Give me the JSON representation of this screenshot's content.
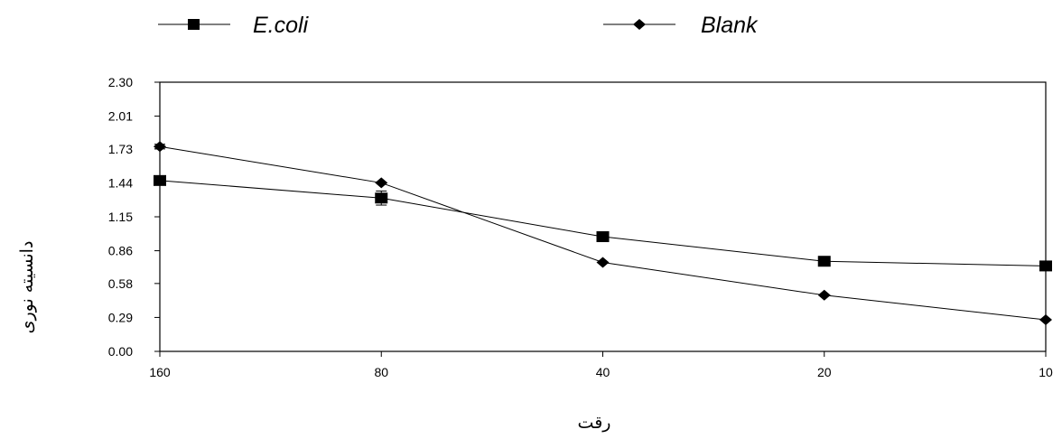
{
  "chart_data": {
    "type": "line",
    "title": "",
    "xlabel": "رقت",
    "ylabel": "دانسیته نوری",
    "categories": [
      "160",
      "80",
      "40",
      "20",
      "10"
    ],
    "yticks": [
      "0.00",
      "0.29",
      "0.58",
      "0.86",
      "1.15",
      "1.44",
      "1.73",
      "2.01",
      "2.30"
    ],
    "ylim": [
      0,
      2.3
    ],
    "grid": false,
    "legend": "top",
    "series": [
      {
        "name": "E.coli",
        "marker": "square",
        "color": "#000000",
        "values": [
          1.46,
          1.31,
          0.98,
          0.77,
          0.73
        ],
        "errors": [
          0.0,
          0.06,
          0.0,
          0.0,
          0.0
        ]
      },
      {
        "name": "Blank",
        "marker": "diamond",
        "color": "#000000",
        "values": [
          1.75,
          1.44,
          0.76,
          0.48,
          0.27
        ],
        "errors": [
          0.02,
          0.0,
          0.0,
          0.0,
          0.0
        ]
      }
    ]
  }
}
